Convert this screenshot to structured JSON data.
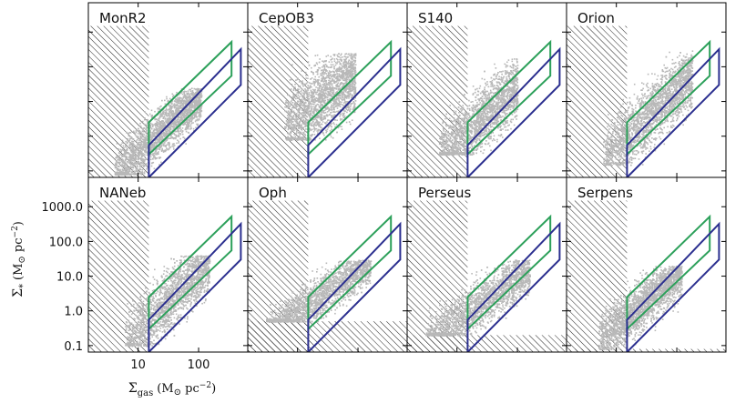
{
  "chart_data": {
    "type": "scatter",
    "title": "",
    "xlabel": "Σgas (M⊙ pc⁻²)",
    "ylabel": "Σ* (M⊙ pc⁻²)",
    "xlabel_parts": {
      "symbol": "Σ",
      "sub": "gas",
      "unit": "(M",
      "sun": "⊙",
      "unit2": " pc",
      "exp": "−2",
      "close": ")"
    },
    "ylabel_parts": {
      "symbol": "Σ",
      "sub": "*",
      "unit": "(M",
      "sun": "⊙",
      "unit2": " pc",
      "exp": "−2",
      "close": ")"
    },
    "xscale": "log",
    "yscale": "log",
    "xlim": [
      1.5,
      650
    ],
    "ylim": [
      0.065,
      7000
    ],
    "xticks": [
      {
        "value": 10,
        "label": "10"
      },
      {
        "value": 100,
        "label": "100"
      }
    ],
    "yticks": [
      {
        "value": 0.1,
        "label": "0.1"
      },
      {
        "value": 1,
        "label": "1.0"
      },
      {
        "value": 10,
        "label": "10.0"
      },
      {
        "value": 100,
        "label": "100.0"
      },
      {
        "value": 1000,
        "label": "1000.0"
      }
    ],
    "layout": {
      "rows": 2,
      "cols": 4
    },
    "hatched_region": {
      "x_max": 15,
      "y_max": 1500
    },
    "boxes": [
      {
        "name": "green-box",
        "color": "#2ca05a",
        "vertices": [
          [
            15,
            0.3
          ],
          [
            15,
            2.5
          ],
          [
            350,
            520
          ],
          [
            350,
            55
          ]
        ]
      },
      {
        "name": "blue-box",
        "color": "#2b2f8f",
        "vertices": [
          [
            15,
            0.065
          ],
          [
            15,
            0.55
          ],
          [
            500,
            320
          ],
          [
            500,
            30
          ]
        ]
      }
    ],
    "panels": [
      {
        "name": "MonR2",
        "x_range": [
          4,
          110
        ],
        "y_range": [
          0.08,
          25
        ],
        "slope": 1.6,
        "yc": 1.2,
        "spread": 0.35,
        "floor": null
      },
      {
        "name": "CepOB3",
        "x_range": [
          6,
          90
        ],
        "y_range": [
          0.8,
          250
        ],
        "slope": 1.3,
        "yc": 12,
        "spread": 0.55,
        "floor": null
      },
      {
        "name": "S140",
        "x_range": [
          5,
          100
        ],
        "y_range": [
          0.3,
          180
        ],
        "slope": 1.5,
        "yc": 3,
        "spread": 0.45,
        "floor": null
      },
      {
        "name": "Orion",
        "x_range": [
          6,
          180
        ],
        "y_range": [
          0.15,
          300
        ],
        "slope": 1.6,
        "yc": 4,
        "spread": 0.45,
        "floor": null
      },
      {
        "name": "NANeb",
        "x_range": [
          6,
          150
        ],
        "y_range": [
          0.1,
          40
        ],
        "slope": 1.7,
        "yc": 2,
        "spread": 0.45,
        "floor": null
      },
      {
        "name": "Oph",
        "x_range": [
          3,
          160
        ],
        "y_range": [
          0.5,
          30
        ],
        "slope": 1.2,
        "yc": 2.5,
        "spread": 0.3,
        "floor": 0.5
      },
      {
        "name": "Perseus",
        "x_range": [
          3,
          160
        ],
        "y_range": [
          0.2,
          30
        ],
        "slope": 1.2,
        "yc": 1.5,
        "spread": 0.35,
        "floor": 0.2
      },
      {
        "name": "Serpens",
        "x_range": [
          5,
          120
        ],
        "y_range": [
          0.08,
          20
        ],
        "slope": 1.4,
        "yc": 1.5,
        "spread": 0.35,
        "floor": 0.08
      }
    ],
    "point_color": "#b8b8b8",
    "hatch_color": "#222222"
  }
}
